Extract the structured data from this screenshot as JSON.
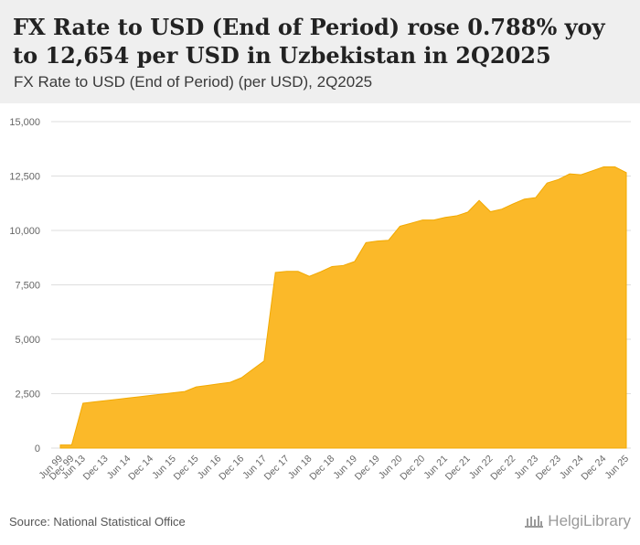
{
  "title": "FX Rate to USD (End of Period) rose 0.788% yoy to 12,654 per USD in Uzbekistan in 2Q2025",
  "subtitle": "FX Rate to USD (End of Period) (per USD), 2Q2025",
  "source": "Source: National Statistical Office",
  "logo": "HelgiLibrary",
  "colors": {
    "area": "#fbb929",
    "area_line": "#f2a900",
    "grid": "#dedede",
    "header_bg": "#efefef"
  },
  "chart_data": {
    "type": "area",
    "title": "FX Rate to USD (End of Period) (per USD), 2Q2025",
    "xlabel": "",
    "ylabel": "",
    "ylim": [
      0,
      15000
    ],
    "yticks": [
      0,
      2500,
      5000,
      7500,
      10000,
      12500,
      15000
    ],
    "ytick_labels": [
      "0",
      "2,500",
      "5,000",
      "7,500",
      "10,000",
      "12,500",
      "15,000"
    ],
    "grid": true,
    "x_tick_labels": [
      "Jun 99",
      "Dec 99",
      "Jun 13",
      "Dec 13",
      "Jun 14",
      "Dec 14",
      "Jun 15",
      "Dec 15",
      "Jun 16",
      "Dec 16",
      "Jun 17",
      "Dec 17",
      "Jun 18",
      "Dec 18",
      "Jun 19",
      "Dec 19",
      "Jun 20",
      "Dec 20",
      "Jun 21",
      "Dec 21",
      "Jun 22",
      "Dec 22",
      "Jun 23",
      "Dec 23",
      "Jun 24",
      "Dec 24",
      "Jun 25"
    ],
    "series": [
      {
        "name": "FX Rate to USD (End of Period)",
        "x": [
          "Jun 99",
          "Dec 99",
          "Jun 13",
          "Sep 13",
          "Dec 13",
          "Mar 14",
          "Jun 14",
          "Sep 14",
          "Dec 14",
          "Mar 15",
          "Jun 15",
          "Sep 15",
          "Dec 15",
          "Mar 16",
          "Jun 16",
          "Sep 16",
          "Dec 16",
          "Mar 17",
          "Jun 17",
          "Sep 17",
          "Dec 17",
          "Mar 18",
          "Jun 18",
          "Sep 18",
          "Dec 18",
          "Mar 19",
          "Jun 19",
          "Sep 19",
          "Dec 19",
          "Mar 20",
          "Jun 20",
          "Sep 20",
          "Dec 20",
          "Mar 21",
          "Jun 21",
          "Sep 21",
          "Dec 21",
          "Mar 22",
          "Jun 22",
          "Sep 22",
          "Dec 22",
          "Mar 23",
          "Jun 23",
          "Sep 23",
          "Dec 23",
          "Mar 24",
          "Jun 24",
          "Sep 24",
          "Dec 24",
          "Mar 25",
          "Jun 25"
        ],
        "values": [
          140,
          141,
          2060,
          2120,
          2180,
          2240,
          2300,
          2360,
          2420,
          2480,
          2540,
          2600,
          2810,
          2880,
          2950,
          3020,
          3230,
          3620,
          4000,
          8070,
          8120,
          8120,
          7890,
          8100,
          8340,
          8390,
          8570,
          9440,
          9510,
          9550,
          10190,
          10330,
          10480,
          10480,
          10600,
          10670,
          10840,
          11380,
          10860,
          10980,
          11220,
          11440,
          11510,
          12180,
          12340,
          12600,
          12560,
          12740,
          12920,
          12920,
          12654
        ]
      }
    ]
  }
}
